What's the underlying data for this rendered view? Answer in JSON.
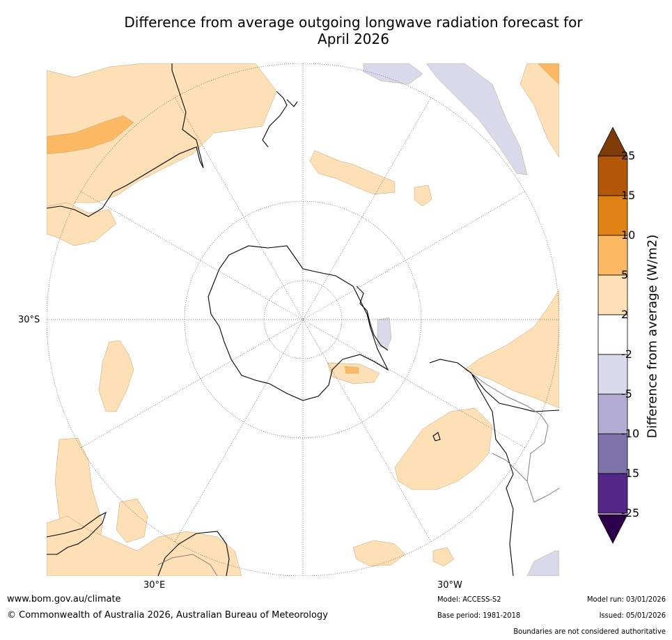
{
  "title": {
    "line1": "Difference from average outgoing longwave radiation forecast for",
    "line2": "April 2026"
  },
  "map": {
    "lat_label": "30°S",
    "lon_labels": {
      "east": "30°E",
      "west": "30°W"
    },
    "colors": {
      "ocean": "#ffffff",
      "coast": "#000000",
      "border": "#808080",
      "grid": "#555555"
    }
  },
  "colorbar": {
    "title": "Difference from average (W/m2)",
    "ticks": [
      "25",
      "15",
      "10",
      "5",
      "2",
      "-2",
      "-5",
      "-10",
      "-15",
      "-25"
    ],
    "bins": [
      {
        "color": "#7f3b08"
      },
      {
        "color": "#b35806"
      },
      {
        "color": "#e08214"
      },
      {
        "color": "#fdb863"
      },
      {
        "color": "#fee0b6"
      },
      {
        "color": "#ffffff"
      },
      {
        "color": "#d8daeb"
      },
      {
        "color": "#b2abd2"
      },
      {
        "color": "#8073ac"
      },
      {
        "color": "#542788"
      },
      {
        "color": "#2d004b"
      }
    ]
  },
  "footer": {
    "website": "www.bom.gov.au/climate",
    "copyright": "© Commonwealth of Australia 2026, Australian Bureau of Meteorology",
    "model": "Model: ACCESS-S2",
    "base_period": "Base period: 1981-2018",
    "model_run": "Model run: 03/01/2026",
    "issued": "Issued: 05/01/2026",
    "disclaimer": "Boundaries are not considered authoritative"
  }
}
